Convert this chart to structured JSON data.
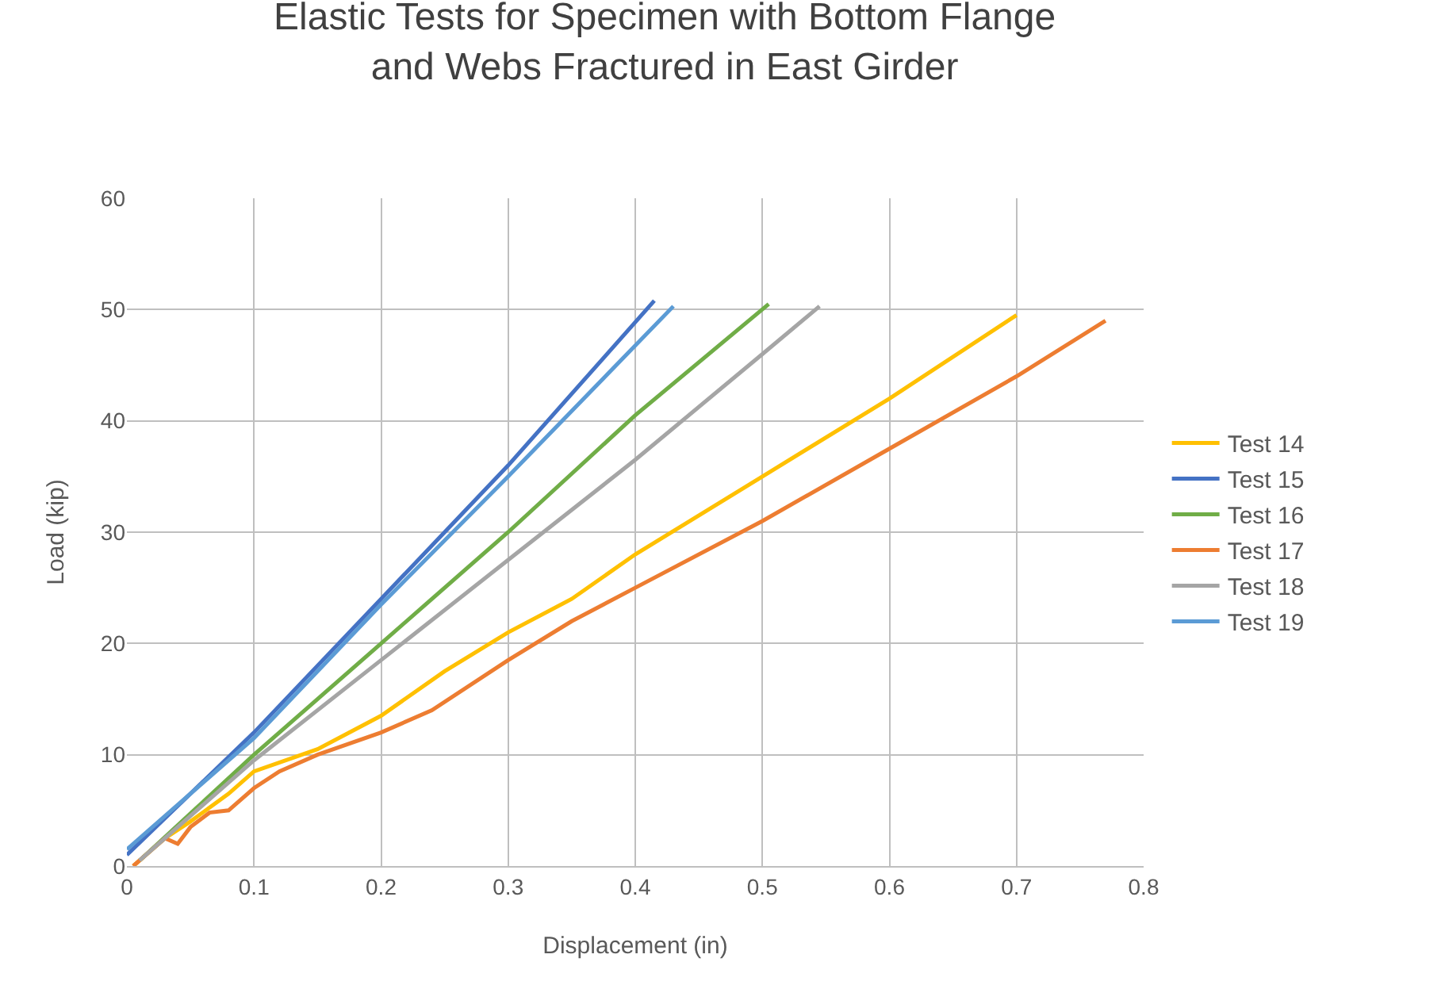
{
  "chart_data": {
    "type": "line",
    "title": "Elastic Tests for Specimen with Bottom Flange\nand Webs Fractured in East Girder",
    "xlabel": "Displacement (in)",
    "ylabel": "Load (kip)",
    "xlim": [
      0,
      0.8
    ],
    "xticks": [
      0,
      0.1,
      0.2,
      0.3,
      0.4,
      0.5,
      0.6,
      0.7,
      0.8
    ],
    "ylim": [
      0,
      60
    ],
    "yticks": [
      0,
      10,
      20,
      30,
      40,
      50,
      60
    ],
    "grid": true,
    "legend": "right",
    "marker": "none",
    "line_style": "solid",
    "series": [
      {
        "name": "Test 14",
        "color": "#ffc000",
        "x": [
          0.005,
          0.03,
          0.05,
          0.08,
          0.1,
          0.15,
          0.2,
          0.25,
          0.3,
          0.35,
          0.4,
          0.5,
          0.6,
          0.7
        ],
        "values": [
          0,
          2.5,
          4,
          6.5,
          8.5,
          10.5,
          13.5,
          17.5,
          21,
          24,
          28,
          35,
          42,
          49.5
        ]
      },
      {
        "name": "Test 15",
        "color": "#4472c4",
        "x": [
          0,
          0.1,
          0.2,
          0.3,
          0.415
        ],
        "values": [
          1,
          12,
          24,
          36,
          50.8
        ]
      },
      {
        "name": "Test 16",
        "color": "#70ad47",
        "x": [
          0.01,
          0.1,
          0.2,
          0.3,
          0.4,
          0.505
        ],
        "values": [
          0.5,
          10,
          20,
          30,
          40.5,
          50.5
        ]
      },
      {
        "name": "Test 17",
        "color": "#ed7d31",
        "x": [
          0.005,
          0.01,
          0.03,
          0.04,
          0.05,
          0.065,
          0.08,
          0.1,
          0.12,
          0.15,
          0.2,
          0.24,
          0.3,
          0.35,
          0.4,
          0.5,
          0.6,
          0.7,
          0.77
        ],
        "values": [
          0,
          0.5,
          2.5,
          2,
          3.5,
          4.8,
          5,
          7,
          8.5,
          10,
          12,
          14,
          18.5,
          22,
          25,
          31,
          37.5,
          44,
          49
        ]
      },
      {
        "name": "Test 18",
        "color": "#a5a5a5",
        "x": [
          0.01,
          0.1,
          0.2,
          0.3,
          0.4,
          0.5,
          0.545
        ],
        "values": [
          0.5,
          9.5,
          18.5,
          27.5,
          36.5,
          46,
          50.3
        ]
      },
      {
        "name": "Test 19",
        "color": "#5b9bd5",
        "x": [
          0,
          0.1,
          0.2,
          0.3,
          0.43
        ],
        "values": [
          1.5,
          11.5,
          23.5,
          35,
          50.3
        ]
      }
    ]
  }
}
